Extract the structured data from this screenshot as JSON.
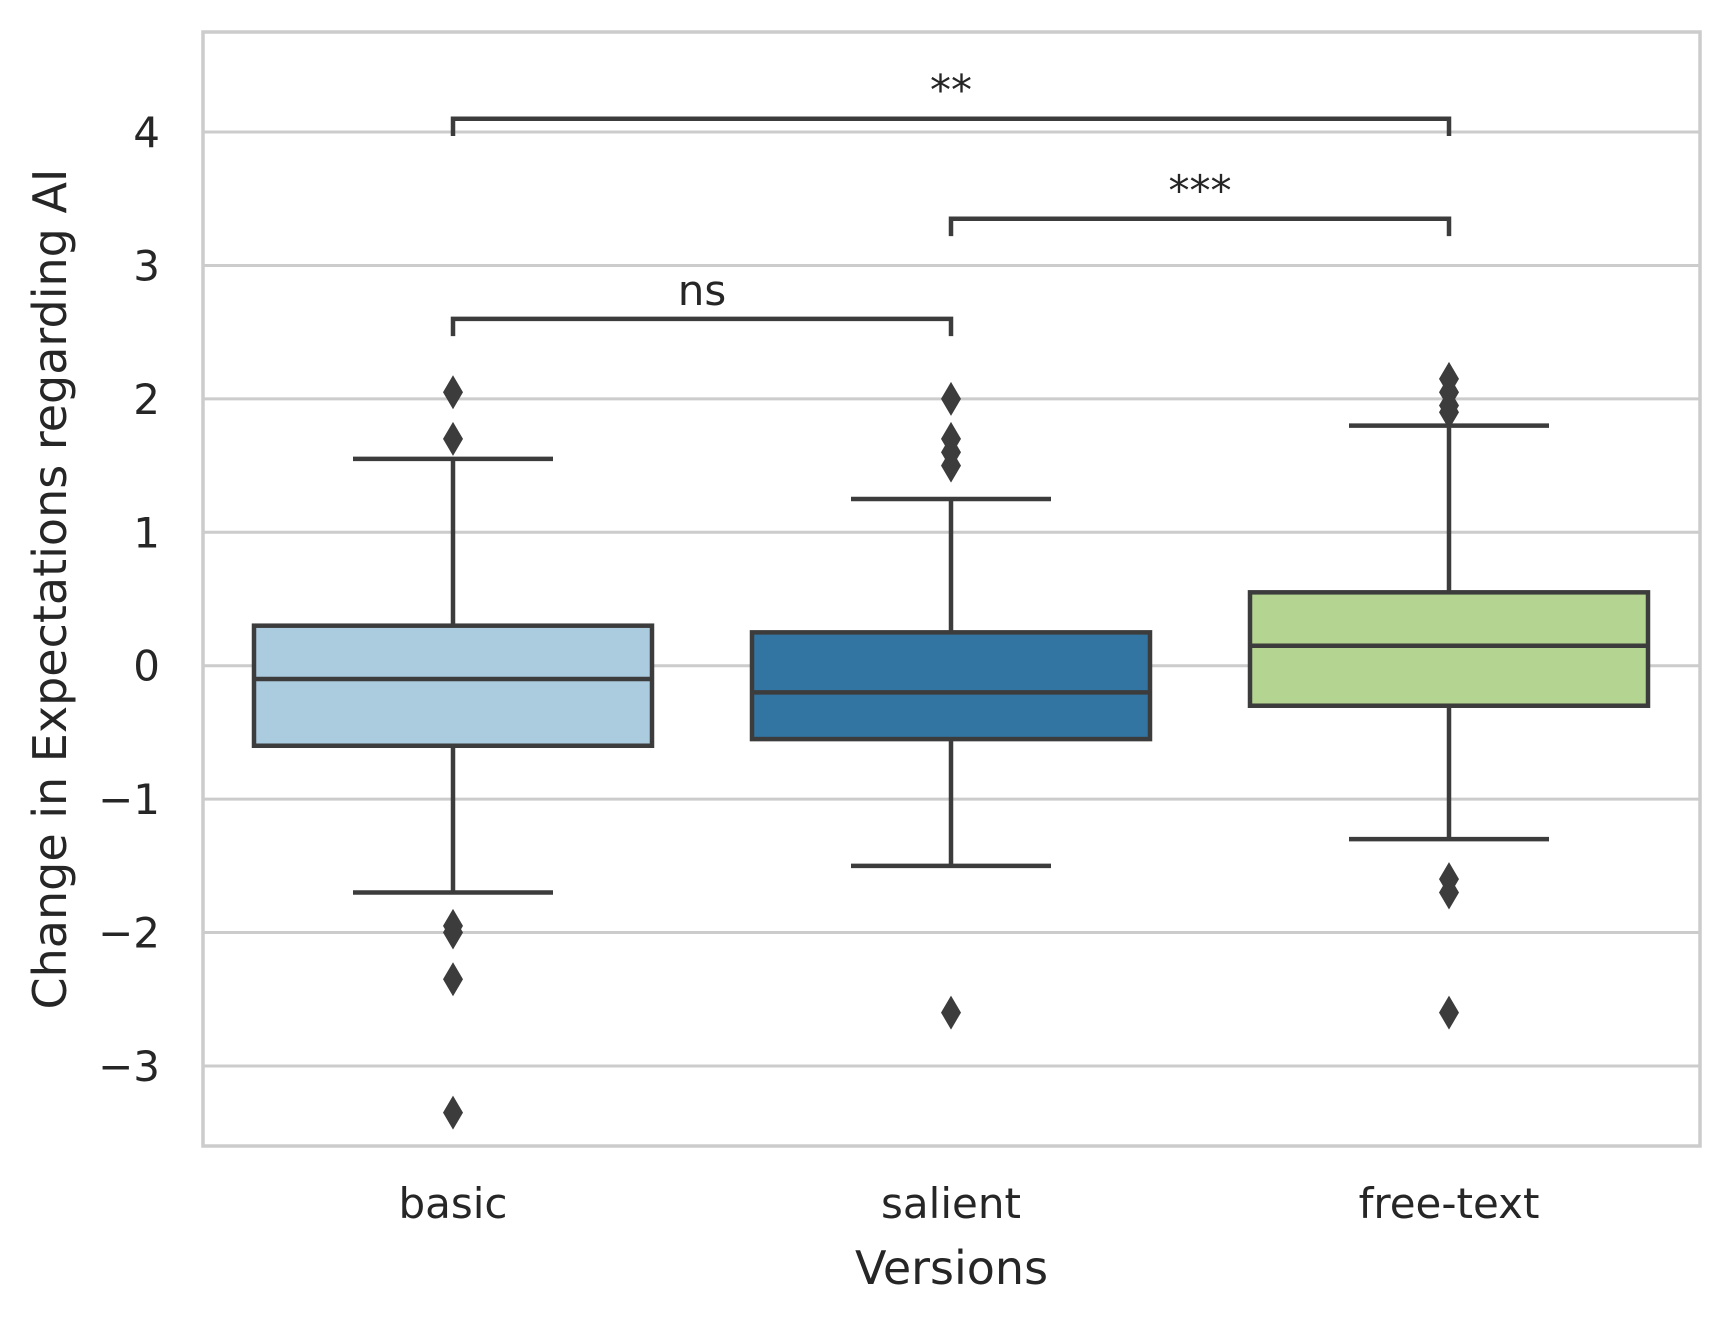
{
  "chart_data": {
    "type": "box",
    "xlabel": "Versions",
    "ylabel": "Change in Expectations regarding AI",
    "ylim": [
      -3.6,
      4.75
    ],
    "yticks": [
      -3,
      -2,
      -1,
      0,
      1,
      2,
      3,
      4
    ],
    "ytick_labels": [
      "−3",
      "−2",
      "−1",
      "0",
      "1",
      "2",
      "3",
      "4"
    ],
    "grid": "horizontal",
    "categories": [
      "basic",
      "salient",
      "free-text"
    ],
    "boxes": [
      {
        "category": "basic",
        "color": "#abcbdf",
        "whisker_low": -1.7,
        "q1": -0.6,
        "median": -0.1,
        "q3": 0.3,
        "whisker_high": 1.55,
        "outliers": [
          2.05,
          1.7,
          -1.95,
          -2.0,
          -2.35,
          -3.35
        ]
      },
      {
        "category": "salient",
        "color": "#3274a2",
        "whisker_low": -1.5,
        "q1": -0.55,
        "median": -0.2,
        "q3": 0.25,
        "whisker_high": 1.25,
        "outliers": [
          2.0,
          1.7,
          1.6,
          1.5,
          -2.6
        ]
      },
      {
        "category": "free-text",
        "color": "#b3d591",
        "whisker_low": -1.3,
        "q1": -0.3,
        "median": 0.15,
        "q3": 0.55,
        "whisker_high": 1.8,
        "outliers": [
          2.15,
          2.05,
          1.95,
          1.9,
          -1.6,
          -1.7,
          -2.6
        ]
      }
    ],
    "significance": [
      {
        "from": "basic",
        "to": "salient",
        "y": 2.6,
        "label": "ns"
      },
      {
        "from": "salient",
        "to": "free-text",
        "y": 3.35,
        "label": "***"
      },
      {
        "from": "basic",
        "to": "free-text",
        "y": 4.1,
        "label": "**"
      }
    ],
    "colors": {
      "line": "#3c3c3c",
      "grid": "#cccccc",
      "frame": "#cccccc",
      "text": "#262626"
    }
  }
}
